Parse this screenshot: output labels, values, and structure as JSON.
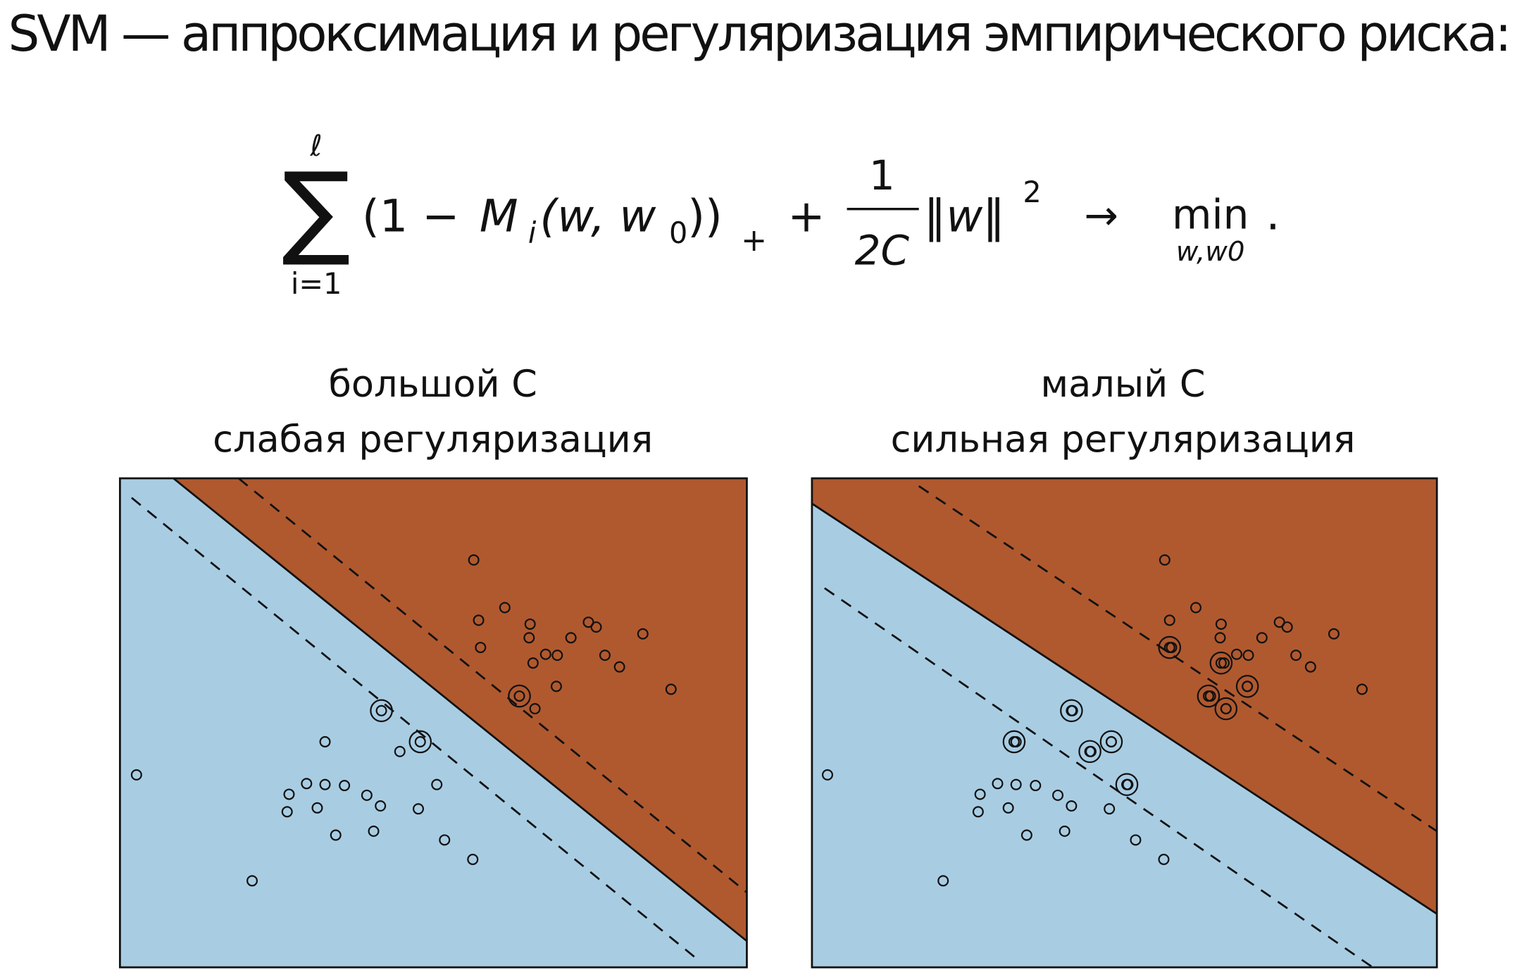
{
  "header": {
    "title": "SVM — аппроксимация и регуляризация эмпирического риска:"
  },
  "formula": {
    "sum_upper": "ℓ",
    "sum_symbol": "∑",
    "sum_lower": "i=1",
    "open": "(1 − ",
    "m": "M",
    "m_sub": "i",
    "args": "(w, w",
    "args_sub": "0",
    "close": "))",
    "plus_sub": "+",
    "plus": "+",
    "frac_num": "1",
    "frac_den": "2C",
    "norm": "‖w‖",
    "norm_sup": "2",
    "arrow": "→",
    "min": "min",
    "min_sub": "w,w0",
    "end": "."
  },
  "panels": [
    {
      "title": "большой C",
      "subtitle": "слабая регуляризация"
    },
    {
      "title": "малый C",
      "subtitle": "сильная регуляризация"
    }
  ]
}
